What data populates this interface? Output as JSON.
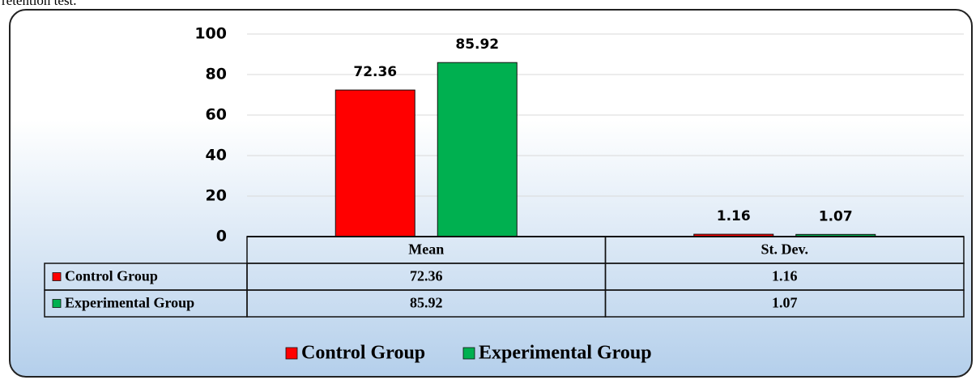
{
  "caption": "retention test.",
  "chart_data": {
    "type": "bar",
    "categories": [
      "Mean",
      "St. Dev."
    ],
    "series": [
      {
        "name": "Control Group",
        "color": "#ff0000",
        "values": [
          72.36,
          1.16
        ]
      },
      {
        "name": "Experimental Group",
        "color": "#00b050",
        "values": [
          85.92,
          1.07
        ]
      }
    ],
    "ylim": [
      0,
      100
    ],
    "yticks": [
      0,
      20,
      40,
      60,
      80,
      100
    ],
    "grid": true
  }
}
